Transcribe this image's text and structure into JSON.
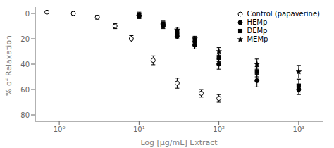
{
  "chart_data": {
    "type": "scatter",
    "xlabel": "Log [µg/mL] Extract",
    "ylabel": "% of Relaxation",
    "log": "x",
    "xlim": [
      0.5,
      2000
    ],
    "ylim": [
      85,
      -5
    ],
    "yticks": [
      0,
      20,
      40,
      60,
      80
    ],
    "xticks": [
      {
        "value": 1,
        "label": "10⁰"
      },
      {
        "value": 10,
        "label": "10¹"
      },
      {
        "value": 100,
        "label": "10²"
      },
      {
        "value": 1000,
        "label": "10³"
      }
    ],
    "grid": false,
    "legend": "upper right",
    "series": [
      {
        "name": "Control (papaverine)",
        "color": "#000000",
        "marker": "open-circle",
        "x": [
          0.7,
          1.5,
          3,
          5,
          8,
          15,
          30,
          60,
          100
        ],
        "values": [
          -1,
          0,
          3,
          10,
          20,
          37,
          55,
          63,
          67
        ],
        "yerr": [
          0.8,
          1.0,
          1.5,
          2.0,
          2.5,
          3.5,
          4,
          3,
          3
        ]
      },
      {
        "name": "HEMp",
        "color": "#000000",
        "marker": "circle",
        "x": [
          10,
          20,
          30,
          50,
          100,
          300,
          1000
        ],
        "values": [
          2,
          10,
          18,
          25,
          40,
          53,
          60
        ],
        "yerr": [
          2,
          2,
          2,
          3,
          4,
          5,
          4
        ]
      },
      {
        "name": "DEMp",
        "color": "#000000",
        "marker": "square",
        "x": [
          10,
          20,
          30,
          50,
          100,
          300,
          1000
        ],
        "values": [
          1,
          8,
          15,
          22,
          35,
          46,
          57
        ],
        "yerr": [
          2,
          2,
          2,
          3,
          3,
          4,
          5
        ]
      },
      {
        "name": "MEMp",
        "color": "#000000",
        "marker": "star",
        "x": [
          10,
          20,
          30,
          50,
          100,
          300,
          1000
        ],
        "values": [
          2,
          9,
          13,
          20,
          30,
          40,
          46
        ],
        "yerr": [
          2,
          2,
          2,
          2,
          3,
          4,
          5
        ]
      }
    ]
  }
}
